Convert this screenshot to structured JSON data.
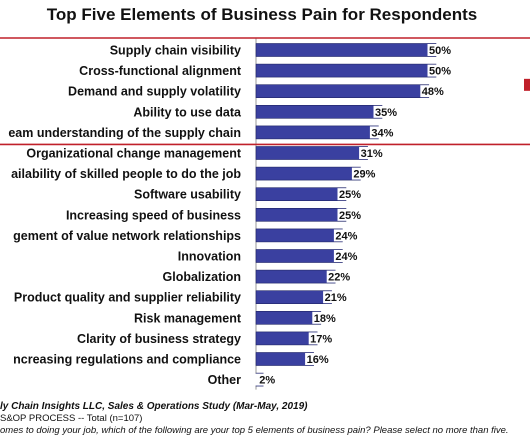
{
  "chart_data": {
    "type": "bar",
    "orientation": "horizontal",
    "title": "Top Five Elements of Business Pain for Respondents",
    "categories": [
      "Supply chain visibility",
      "Cross-functional alignment",
      "Demand and supply volatility",
      "Ability to use data",
      "eam understanding of the supply chain",
      "Organizational change management",
      "ailability of skilled people to do the job",
      "Software usability",
      "Increasing speed of business",
      "gement of value network relationships",
      "Innovation",
      "Globalization",
      "Product quality and supplier reliability",
      "Risk management",
      "Clarity of business strategy",
      "ncreasing regulations and compliance",
      "Other"
    ],
    "values": [
      50,
      50,
      48,
      35,
      34,
      31,
      29,
      25,
      25,
      24,
      24,
      22,
      21,
      18,
      17,
      16,
      2
    ],
    "value_labels": [
      "50%",
      "50%",
      "48%",
      "35%",
      "34%",
      "31%",
      "29%",
      "25%",
      "25%",
      "24%",
      "24%",
      "22%",
      "21%",
      "18%",
      "17%",
      "16%",
      "2%"
    ],
    "xlim": [
      0,
      55
    ],
    "highlight_top_n": 5,
    "grid": false,
    "legend": "none"
  },
  "colors": {
    "bar": "#3a40a0",
    "bar_edge": "#1f2466",
    "value_label_bg": "#ffffff",
    "highlight_box": "#c0202a",
    "text": "#111111"
  },
  "footer": {
    "source": "ly Chain Insights LLC, Sales & Operations Study (Mar-May, 2019)",
    "base": "S&OP PROCESS  -- Total (n=107)",
    "question": "omes to doing your job, which of the following are your top 5 elements of business pain? Please select no more than five."
  }
}
